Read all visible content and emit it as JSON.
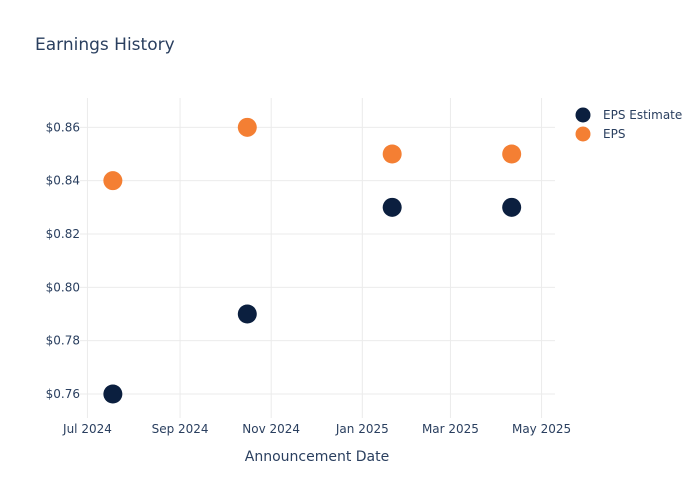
{
  "colors": {
    "estimate": "#0b1f3f",
    "eps": "#f47f33",
    "text": "#2a3f5f",
    "grid": "#ebebeb"
  },
  "chart_data": {
    "type": "scatter",
    "title": "Earnings History",
    "xlabel": "Announcement Date",
    "ylabel": "",
    "x_ticks": [
      "Jul 2024",
      "Sep 2024",
      "Nov 2024",
      "Jan 2025",
      "Mar 2025",
      "May 2025"
    ],
    "y_ticks": [
      "$0.76",
      "$0.78",
      "$0.80",
      "$0.82",
      "$0.84",
      "$0.86"
    ],
    "y_tick_values": [
      0.76,
      0.78,
      0.8,
      0.82,
      0.84,
      0.86
    ],
    "xlim": [
      "2024-06-26",
      "2025-05-10"
    ],
    "ylim": [
      0.751,
      0.871
    ],
    "grid": true,
    "legend_position": "top-right",
    "series": [
      {
        "name": "EPS Estimate",
        "color": "#0b1f3f",
        "x": [
          "2024-07-18",
          "2024-10-16",
          "2025-01-21",
          "2025-04-11"
        ],
        "y": [
          0.76,
          0.79,
          0.83,
          0.83
        ]
      },
      {
        "name": "EPS",
        "color": "#f47f33",
        "x": [
          "2024-07-18",
          "2024-10-16",
          "2025-01-21",
          "2025-04-11"
        ],
        "y": [
          0.84,
          0.86,
          0.85,
          0.85
        ]
      }
    ]
  }
}
